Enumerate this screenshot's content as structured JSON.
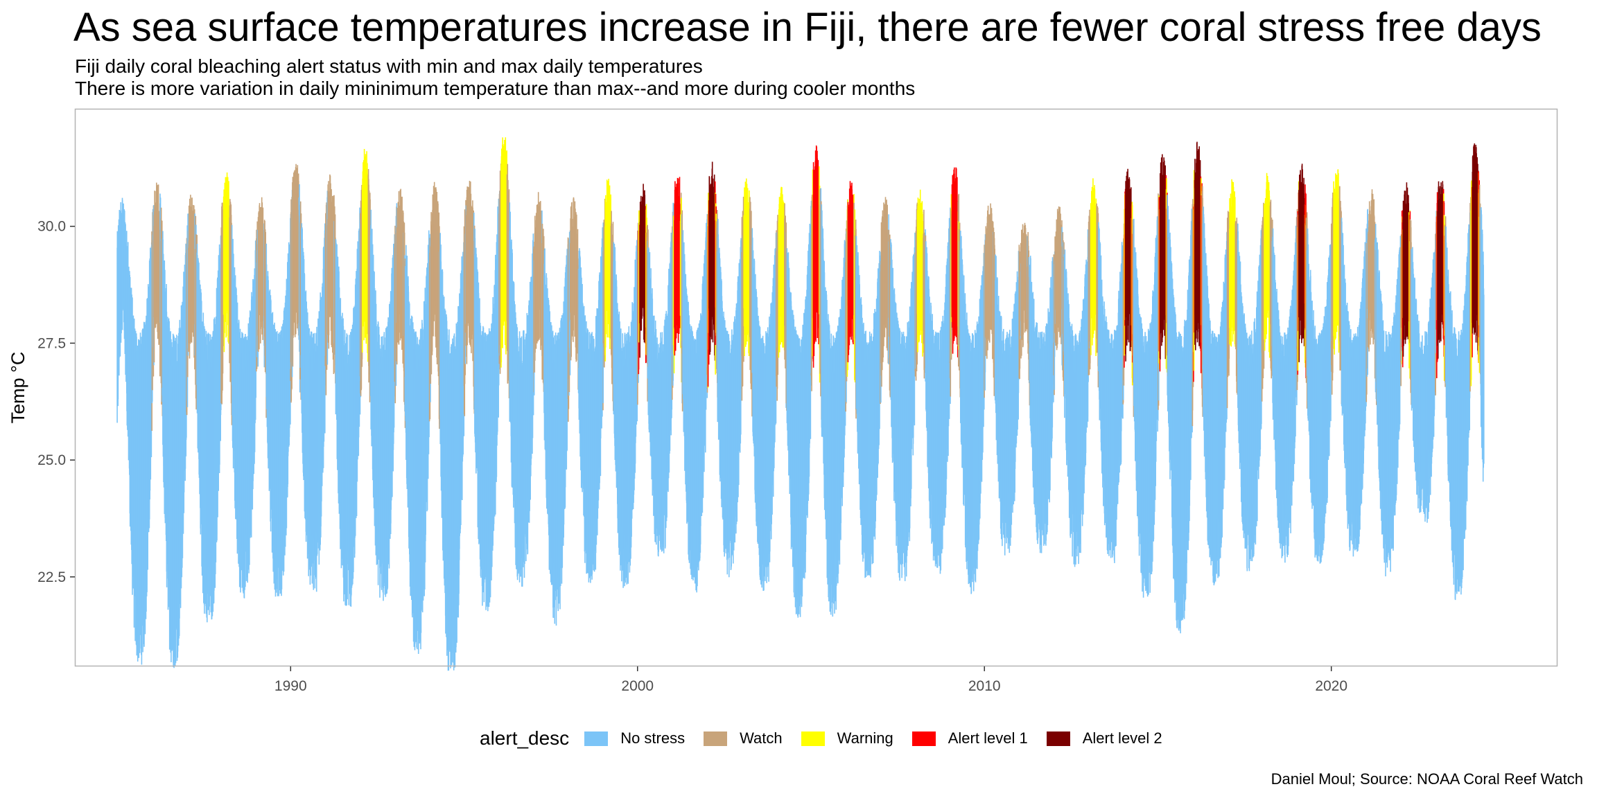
{
  "title": "As sea surface temperatures increase in Fiji, there are fewer coral stress free days",
  "subtitle_line1": "Fiji daily coral bleaching alert status with min and max daily temperatures",
  "subtitle_line2": "There is more variation in daily mininimum temperature than max--and more during cooler months",
  "caption": "Daniel Moul; Source: NOAA Coral Reef Watch",
  "legend_title": "alert_desc",
  "chart_data": {
    "type": "area",
    "xlabel": "",
    "ylabel": "Temp °C",
    "xlim": [
      1983.8,
      2026.5
    ],
    "ylim": [
      20.6,
      32.5
    ],
    "x_ticks": [
      1990,
      2000,
      2010,
      2020
    ],
    "y_ticks": [
      22.5,
      25.0,
      27.5,
      30.0
    ],
    "y_tick_labels": [
      "22.5",
      "25.0",
      "27.5",
      "30.0"
    ],
    "grid": false,
    "legend_position": "bottom",
    "categories": [
      {
        "name": "No stress",
        "color": "#7bc4f7"
      },
      {
        "name": "Watch",
        "color": "#c8a47a"
      },
      {
        "name": "Warning",
        "color": "#ffff00"
      },
      {
        "name": "Alert level 1",
        "color": "#ff0000"
      },
      {
        "name": "Alert level 2",
        "color": "#7a0000"
      }
    ],
    "x_range": [
      1985.0,
      2024.4
    ],
    "annual_peaks": [
      {
        "year": 1985,
        "max": 30.2,
        "status": "No stress"
      },
      {
        "year": 1986,
        "max": 30.6,
        "status": "Watch"
      },
      {
        "year": 1987,
        "max": 30.3,
        "status": "Watch"
      },
      {
        "year": 1988,
        "max": 30.8,
        "status": "Warning"
      },
      {
        "year": 1989,
        "max": 30.2,
        "status": "Watch"
      },
      {
        "year": 1990,
        "max": 31.0,
        "status": "Watch"
      },
      {
        "year": 1991,
        "max": 30.7,
        "status": "Watch"
      },
      {
        "year": 1992,
        "max": 31.3,
        "status": "Warning"
      },
      {
        "year": 1993,
        "max": 30.4,
        "status": "Watch"
      },
      {
        "year": 1994,
        "max": 30.5,
        "status": "Watch"
      },
      {
        "year": 1995,
        "max": 30.6,
        "status": "Watch"
      },
      {
        "year": 1996,
        "max": 31.6,
        "status": "Warning"
      },
      {
        "year": 1997,
        "max": 30.3,
        "status": "Watch"
      },
      {
        "year": 1998,
        "max": 30.2,
        "status": "Watch"
      },
      {
        "year": 1999,
        "max": 30.6,
        "status": "Warning"
      },
      {
        "year": 2000,
        "max": 30.5,
        "status": "Alert level 2"
      },
      {
        "year": 2001,
        "max": 30.8,
        "status": "Alert level 1"
      },
      {
        "year": 2002,
        "max": 31.0,
        "status": "Alert level 2"
      },
      {
        "year": 2003,
        "max": 30.6,
        "status": "Warning"
      },
      {
        "year": 2004,
        "max": 30.4,
        "status": "Warning"
      },
      {
        "year": 2005,
        "max": 31.3,
        "status": "Alert level 1"
      },
      {
        "year": 2006,
        "max": 30.6,
        "status": "Alert level 1"
      },
      {
        "year": 2007,
        "max": 30.2,
        "status": "Watch"
      },
      {
        "year": 2008,
        "max": 30.4,
        "status": "Warning"
      },
      {
        "year": 2009,
        "max": 30.9,
        "status": "Alert level 1"
      },
      {
        "year": 2010,
        "max": 30.1,
        "status": "Watch"
      },
      {
        "year": 2011,
        "max": 29.9,
        "status": "Watch"
      },
      {
        "year": 2012,
        "max": 30.0,
        "status": "Watch"
      },
      {
        "year": 2013,
        "max": 30.6,
        "status": "Warning"
      },
      {
        "year": 2014,
        "max": 30.8,
        "status": "Alert level 2"
      },
      {
        "year": 2015,
        "max": 31.2,
        "status": "Alert level 2"
      },
      {
        "year": 2016,
        "max": 31.4,
        "status": "Alert level 2"
      },
      {
        "year": 2017,
        "max": 30.6,
        "status": "Warning"
      },
      {
        "year": 2018,
        "max": 30.7,
        "status": "Warning"
      },
      {
        "year": 2019,
        "max": 30.9,
        "status": "Alert level 2"
      },
      {
        "year": 2020,
        "max": 30.9,
        "status": "Warning"
      },
      {
        "year": 2021,
        "max": 30.4,
        "status": "Watch"
      },
      {
        "year": 2022,
        "max": 30.6,
        "status": "Alert level 2"
      },
      {
        "year": 2023,
        "max": 30.7,
        "status": "Alert level 2"
      },
      {
        "year": 2024,
        "max": 31.4,
        "status": "Alert level 2"
      }
    ],
    "annual_troughs": [
      {
        "year": 1985.6,
        "min": 21.3
      },
      {
        "year": 1986.6,
        "min": 21.2
      },
      {
        "year": 1987.6,
        "min": 22.1
      },
      {
        "year": 1988.6,
        "min": 22.7
      },
      {
        "year": 1989.6,
        "min": 22.7
      },
      {
        "year": 1990.6,
        "min": 22.8
      },
      {
        "year": 1991.6,
        "min": 22.4
      },
      {
        "year": 1992.6,
        "min": 22.7
      },
      {
        "year": 1993.6,
        "min": 21.5
      },
      {
        "year": 1994.6,
        "min": 20.9
      },
      {
        "year": 1995.6,
        "min": 22.4
      },
      {
        "year": 1996.6,
        "min": 23.0
      },
      {
        "year": 1997.6,
        "min": 22.1
      },
      {
        "year": 1998.6,
        "min": 23.0
      },
      {
        "year": 1999.6,
        "min": 22.9
      },
      {
        "year": 2000.6,
        "min": 23.6
      },
      {
        "year": 2001.6,
        "min": 22.8
      },
      {
        "year": 2002.6,
        "min": 23.2
      },
      {
        "year": 2003.6,
        "min": 22.9
      },
      {
        "year": 2004.6,
        "min": 22.3
      },
      {
        "year": 2005.6,
        "min": 22.3
      },
      {
        "year": 2006.6,
        "min": 23.1
      },
      {
        "year": 2007.6,
        "min": 23.0
      },
      {
        "year": 2008.6,
        "min": 23.2
      },
      {
        "year": 2009.6,
        "min": 22.8
      },
      {
        "year": 2010.6,
        "min": 23.6
      },
      {
        "year": 2011.6,
        "min": 23.7
      },
      {
        "year": 2012.6,
        "min": 23.4
      },
      {
        "year": 2013.6,
        "min": 23.5
      },
      {
        "year": 2014.6,
        "min": 22.7
      },
      {
        "year": 2015.6,
        "min": 21.9
      },
      {
        "year": 2016.6,
        "min": 22.9
      },
      {
        "year": 2017.6,
        "min": 23.2
      },
      {
        "year": 2018.6,
        "min": 23.5
      },
      {
        "year": 2019.6,
        "min": 23.4
      },
      {
        "year": 2020.6,
        "min": 23.6
      },
      {
        "year": 2021.6,
        "min": 23.1
      },
      {
        "year": 2022.6,
        "min": 24.5
      },
      {
        "year": 2023.6,
        "min": 22.6
      }
    ]
  }
}
